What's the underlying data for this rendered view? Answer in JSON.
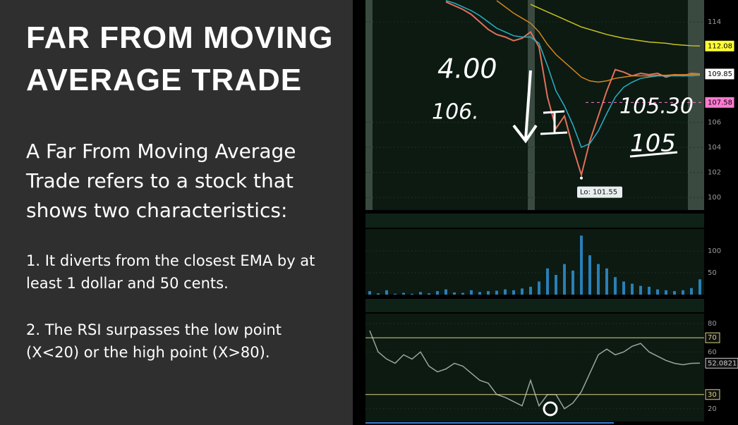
{
  "slide": {
    "title": "FAR FROM MOVING AVERAGE TRADE",
    "intro": "A Far From Moving Average Trade refers to a stock that shows two characteristics:",
    "points": [
      "1. It diverts from the closest EMA by at least 1 dollar and 50 cents.",
      "2. The RSI surpasses the low point (X<20) or the high point (X>80)."
    ]
  },
  "annotations": [
    "4.00",
    "106.",
    "105.30",
    "105"
  ],
  "chart_data": [
    {
      "type": "line",
      "ylim": [
        99,
        115.75
      ],
      "yticks": [
        100,
        102,
        104,
        106,
        114
      ],
      "series": [
        {
          "color": "#e0705a",
          "values": [
            null,
            null,
            null,
            null,
            null,
            null,
            null,
            null,
            null,
            115.6,
            115.3,
            115.0,
            114.6,
            114.0,
            113.4,
            113.0,
            112.8,
            112.5,
            112.7,
            113.2,
            112.0,
            108.0,
            105.5,
            106.5,
            104.0,
            101.8,
            104.5,
            106.5,
            108.5,
            110.2,
            110.0,
            109.7,
            109.9,
            109.8,
            109.9,
            109.6,
            109.8,
            109.7,
            109.9,
            109.85
          ]
        },
        {
          "color": "#2ab0c8",
          "values": [
            null,
            null,
            null,
            null,
            null,
            null,
            null,
            null,
            null,
            115.7,
            115.5,
            115.2,
            114.9,
            114.5,
            114.0,
            113.5,
            113.2,
            112.9,
            112.8,
            112.8,
            112.3,
            110.5,
            108.5,
            107.3,
            105.8,
            104.0,
            104.3,
            105.3,
            106.7,
            108.0,
            108.8,
            109.2,
            109.5,
            109.6,
            109.7,
            109.7,
            109.7,
            109.7,
            109.7,
            109.75
          ]
        },
        {
          "color": "#d4861e",
          "values": [
            null,
            null,
            null,
            null,
            null,
            null,
            null,
            null,
            null,
            null,
            null,
            null,
            null,
            null,
            null,
            115.7,
            115.2,
            114.7,
            114.3,
            113.9,
            113.2,
            112.2,
            111.4,
            110.8,
            110.2,
            109.6,
            109.3,
            109.2,
            109.3,
            109.5,
            109.6,
            109.7,
            109.7,
            109.7,
            109.75,
            109.75,
            109.8,
            109.8,
            109.8,
            109.85
          ]
        },
        {
          "color": "#c8c020",
          "values": [
            null,
            null,
            null,
            null,
            null,
            null,
            null,
            null,
            null,
            null,
            null,
            null,
            null,
            null,
            null,
            null,
            null,
            null,
            null,
            115.4,
            115.1,
            114.8,
            114.5,
            114.2,
            113.9,
            113.6,
            113.4,
            113.2,
            113.0,
            112.85,
            112.7,
            112.6,
            112.5,
            112.4,
            112.35,
            112.3,
            112.2,
            112.15,
            112.1,
            112.08
          ]
        }
      ],
      "price_labels": [
        {
          "value": 112.08,
          "color": "#ffff33"
        },
        {
          "value": 109.85,
          "color": "#ffffff"
        },
        {
          "value": 107.58,
          "color": "#ff7ad0"
        }
      ],
      "low": 101.55,
      "low_label": "Lo: 101.55"
    },
    {
      "type": "bar",
      "color": "#2a7fb8",
      "ylim": [
        0,
        150
      ],
      "yticks": [
        50,
        100
      ],
      "values": [
        8,
        3,
        10,
        2,
        4,
        2,
        6,
        3,
        8,
        12,
        5,
        4,
        10,
        6,
        8,
        9,
        12,
        10,
        14,
        18,
        30,
        60,
        45,
        70,
        55,
        135,
        90,
        70,
        60,
        40,
        30,
        25,
        20,
        18,
        12,
        10,
        8,
        10,
        15,
        35
      ]
    },
    {
      "type": "line",
      "ylim": [
        11,
        87
      ],
      "yticks": [
        20,
        60,
        80
      ],
      "levels": [
        30,
        70
      ],
      "level_color": "#d8d080",
      "series": [
        {
          "color": "#9aa4a0",
          "values": [
            75,
            60,
            55,
            52,
            58,
            55,
            60,
            50,
            46,
            48,
            52,
            50,
            45,
            40,
            38,
            30,
            28,
            25,
            22,
            40,
            22,
            30,
            30,
            20,
            24,
            32,
            45,
            58,
            62,
            58,
            60,
            64,
            66,
            60,
            57,
            54,
            52,
            51,
            52,
            52.0821
          ]
        }
      ],
      "current_value": 52.0821
    }
  ]
}
